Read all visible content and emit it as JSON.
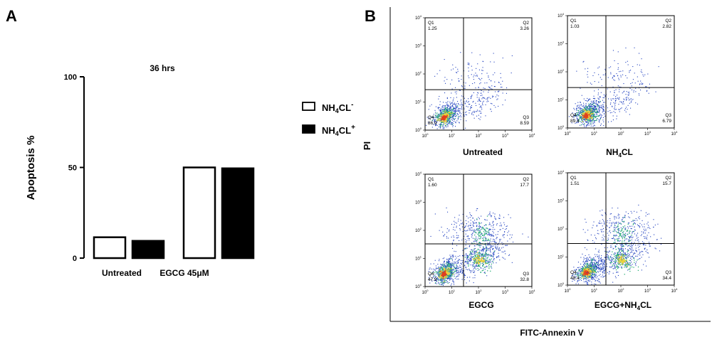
{
  "panel_a": {
    "letter": "A",
    "chart_data": {
      "type": "bar",
      "title": "36 hrs",
      "ylabel": "Apoptosis %",
      "ylim": [
        0,
        100
      ],
      "yticks": [
        "0",
        "50",
        "100"
      ],
      "categories": [
        "Untreated",
        "EGCG 45μM"
      ],
      "series": [
        {
          "name": "NH4CL-",
          "style": "open",
          "values": [
            11.5,
            50
          ]
        },
        {
          "name": "NH4CL+",
          "style": "filled",
          "values": [
            9.5,
            49.5
          ]
        }
      ]
    },
    "legend": [
      {
        "base": "NH",
        "sub": "4",
        "rest": "CL",
        "sup": "-",
        "style": "open"
      },
      {
        "base": "NH",
        "sub": "4",
        "rest": "CL",
        "sup": "+",
        "style": "filled"
      }
    ]
  },
  "panel_b": {
    "letter": "B",
    "y_axis_label": "PI",
    "x_axis_label": "FITC-Annexin V",
    "axis_ticks": [
      "10",
      "0",
      "10",
      "1",
      "10",
      "2",
      "10",
      "3",
      "10",
      "4"
    ],
    "plots": [
      {
        "caption": "Untreated",
        "q1": "1.25",
        "q2": "3.26",
        "q3": "8.59",
        "q4": "86.9"
      },
      {
        "caption_base": "NH",
        "caption_sub": "4",
        "caption_rest": "CL",
        "q1": "1.03",
        "q2": "2.82",
        "q3": "6.79",
        "q4": "89.4"
      },
      {
        "caption": "EGCG",
        "q1": "1.60",
        "q2": "17.7",
        "q3": "32.8",
        "q4": "47.9"
      },
      {
        "caption_base": "EGCG+NH",
        "caption_sub": "4",
        "caption_rest": "CL",
        "q1": "1.51",
        "q2": "15.7",
        "q3": "34.4",
        "q4": "48.4"
      }
    ],
    "quadrant_labels": [
      "Q1",
      "Q2",
      "Q3",
      "Q4"
    ],
    "colors": {
      "dots": "#1f3fbf",
      "dense": "#2fb07a",
      "core": "#f2d23a",
      "hot": "#e0401e"
    }
  }
}
